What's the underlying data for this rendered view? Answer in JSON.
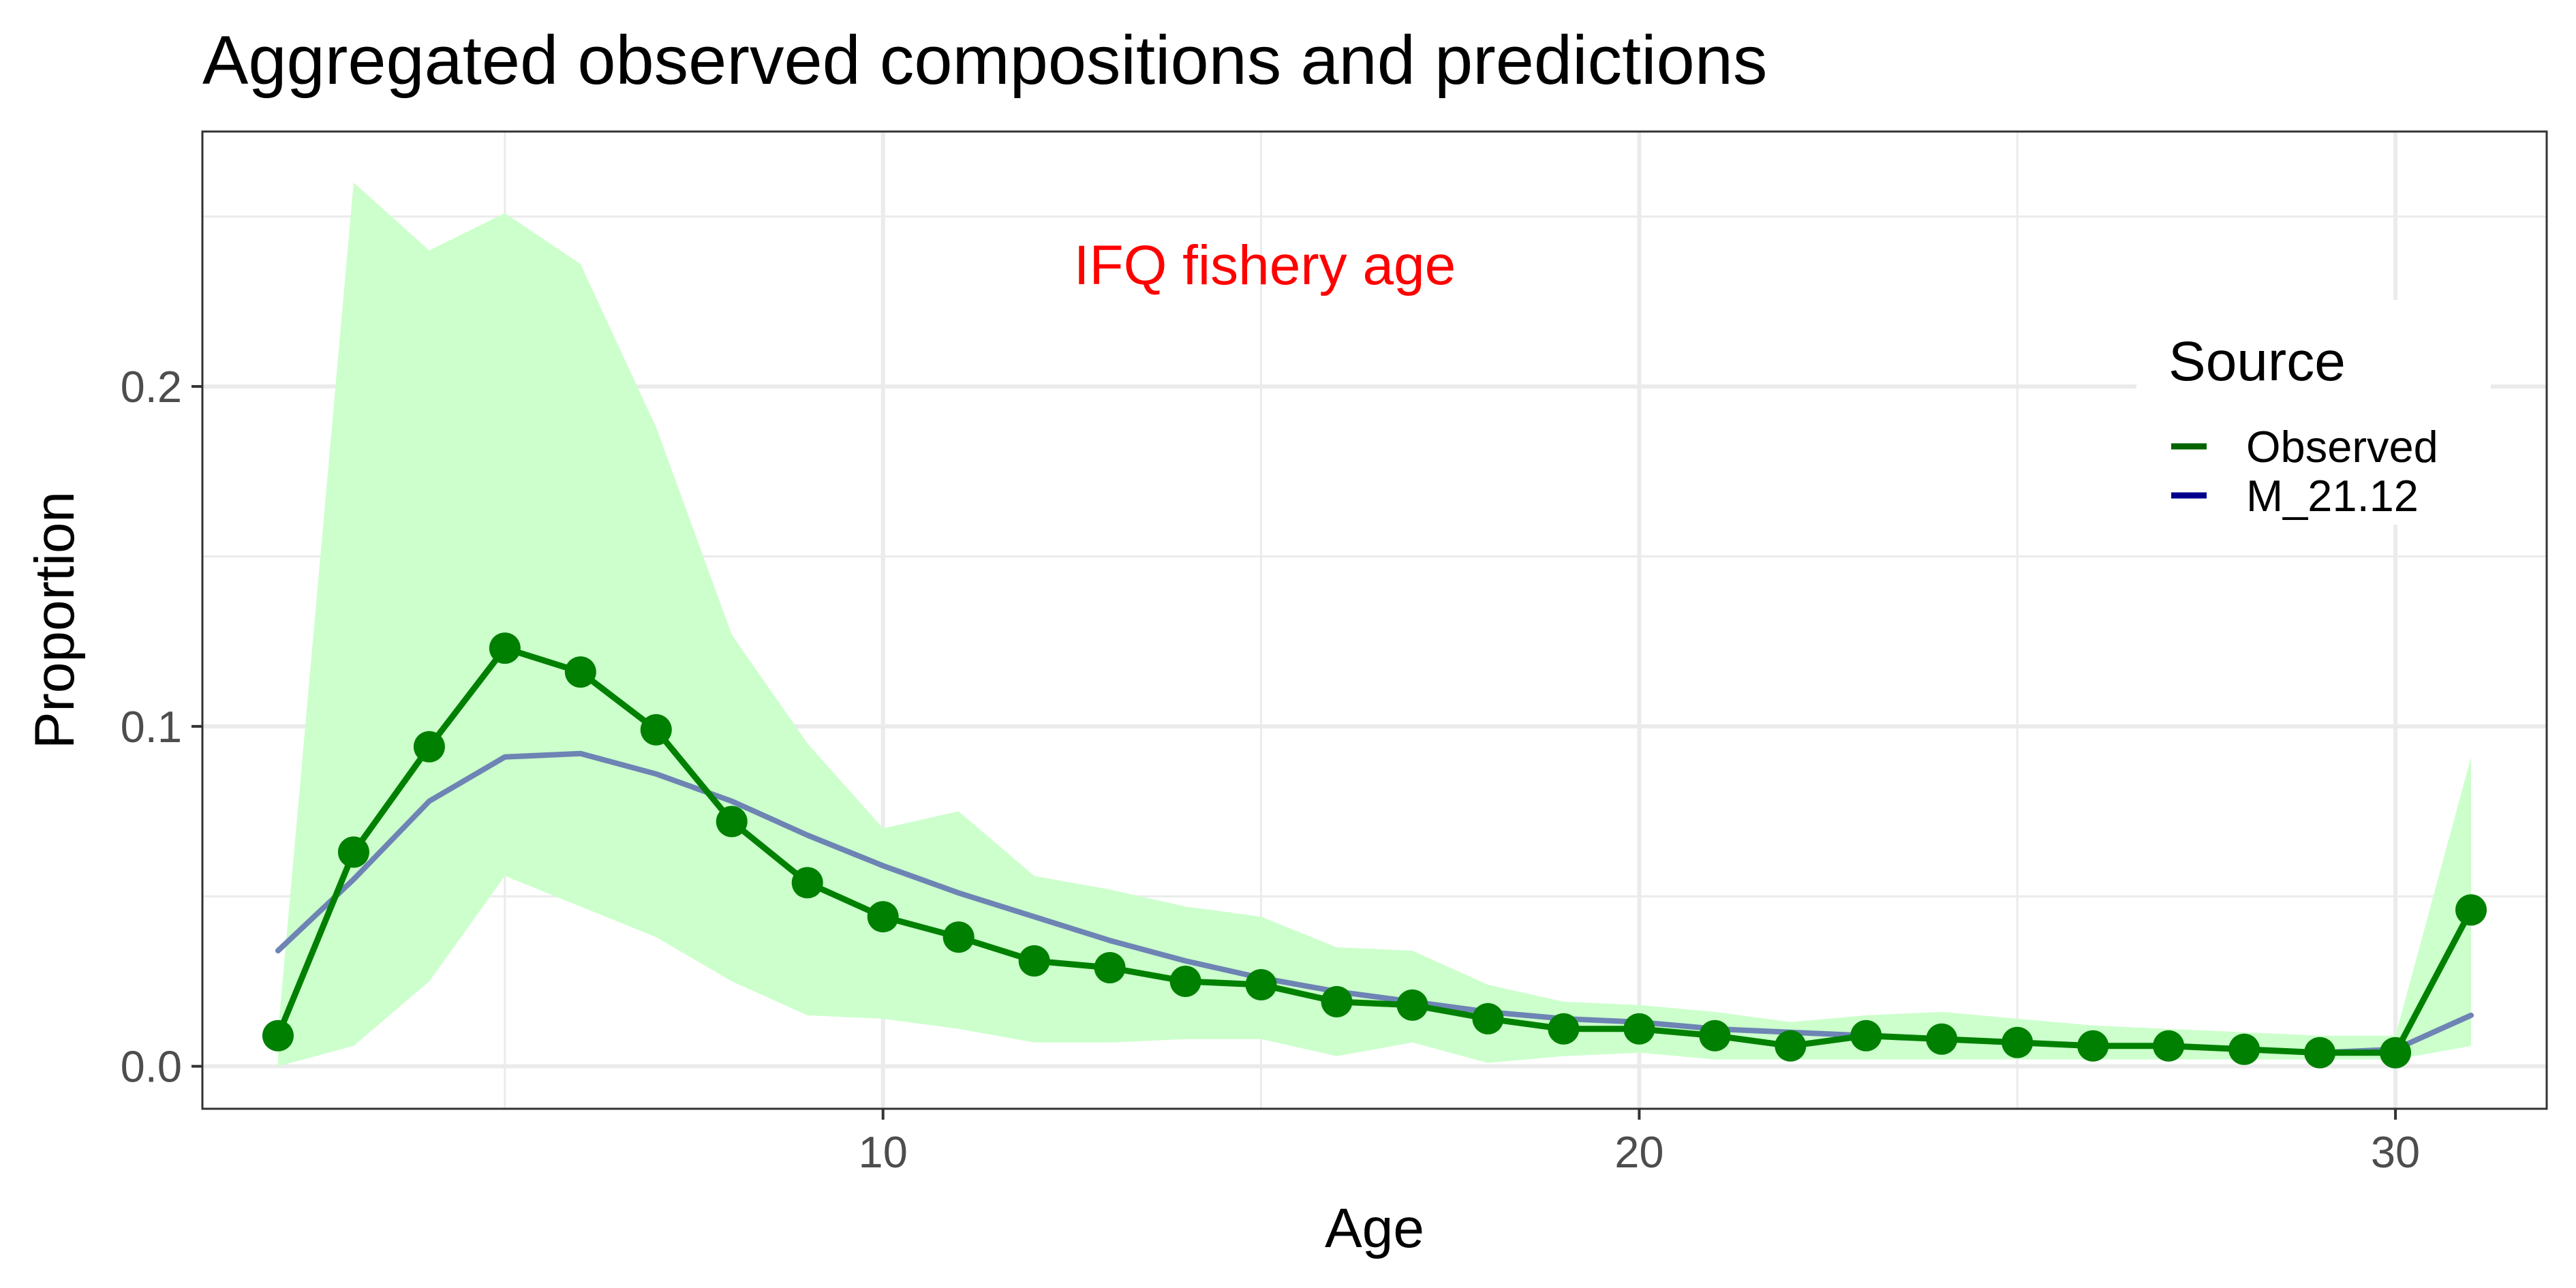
{
  "chart_data": {
    "type": "line",
    "title": "Aggregated observed compositions and predictions",
    "xlabel": "Age",
    "ylabel": "Proportion",
    "annotation": "IFQ fishery age",
    "xlim": [
      1.0,
      32.0
    ],
    "ylim": [
      -0.0125,
      0.275
    ],
    "x_ticks": [
      10,
      20,
      30
    ],
    "y_ticks": [
      0.0,
      0.1,
      0.2
    ],
    "y_tick_labels": [
      "0.0",
      "0.1",
      "0.2"
    ],
    "grid": true,
    "legend": {
      "title": "Source",
      "placement": "right",
      "entries": [
        {
          "label": "Observed",
          "color": "#006400"
        },
        {
          "label": "M_21.12",
          "color": "#00008b"
        }
      ]
    },
    "x": [
      2,
      3,
      4,
      5,
      6,
      7,
      8,
      9,
      10,
      11,
      12,
      13,
      14,
      15,
      16,
      17,
      18,
      19,
      20,
      21,
      22,
      23,
      24,
      25,
      26,
      27,
      28,
      29,
      30,
      31
    ],
    "series": [
      {
        "name": "Observed",
        "color": "#008000",
        "markers": true,
        "values": [
          0.009,
          0.063,
          0.094,
          0.123,
          0.116,
          0.099,
          0.072,
          0.054,
          0.044,
          0.038,
          0.031,
          0.029,
          0.025,
          0.024,
          0.019,
          0.018,
          0.014,
          0.011,
          0.011,
          0.009,
          0.006,
          0.009,
          0.008,
          0.007,
          0.006,
          0.006,
          0.005,
          0.004,
          0.004,
          0.046
        ]
      },
      {
        "name": "M_21.12",
        "color": "#6d84b4",
        "markers": false,
        "values": [
          0.034,
          0.055,
          0.078,
          0.091,
          0.092,
          0.086,
          0.078,
          0.068,
          0.059,
          0.051,
          0.044,
          0.037,
          0.031,
          0.026,
          0.022,
          0.019,
          0.016,
          0.014,
          0.013,
          0.011,
          0.01,
          0.009,
          0.008,
          0.007,
          0.006,
          0.006,
          0.005,
          0.004,
          0.005,
          0.015
        ]
      }
    ],
    "band": {
      "color": "#ccffcc",
      "lower": [
        0.0,
        0.006,
        0.025,
        0.056,
        0.047,
        0.038,
        0.025,
        0.015,
        0.014,
        0.011,
        0.007,
        0.007,
        0.008,
        0.008,
        0.003,
        0.007,
        0.001,
        0.003,
        0.004,
        0.002,
        0.002,
        0.002,
        0.002,
        0.002,
        0.002,
        0.002,
        0.002,
        0.002,
        0.002,
        0.006
      ],
      "upper": [
        0.01,
        0.26,
        0.24,
        0.251,
        0.236,
        0.188,
        0.127,
        0.095,
        0.07,
        0.075,
        0.056,
        0.052,
        0.047,
        0.044,
        0.035,
        0.034,
        0.024,
        0.019,
        0.018,
        0.016,
        0.013,
        0.015,
        0.016,
        0.014,
        0.012,
        0.011,
        0.01,
        0.009,
        0.009,
        0.091
      ]
    }
  }
}
